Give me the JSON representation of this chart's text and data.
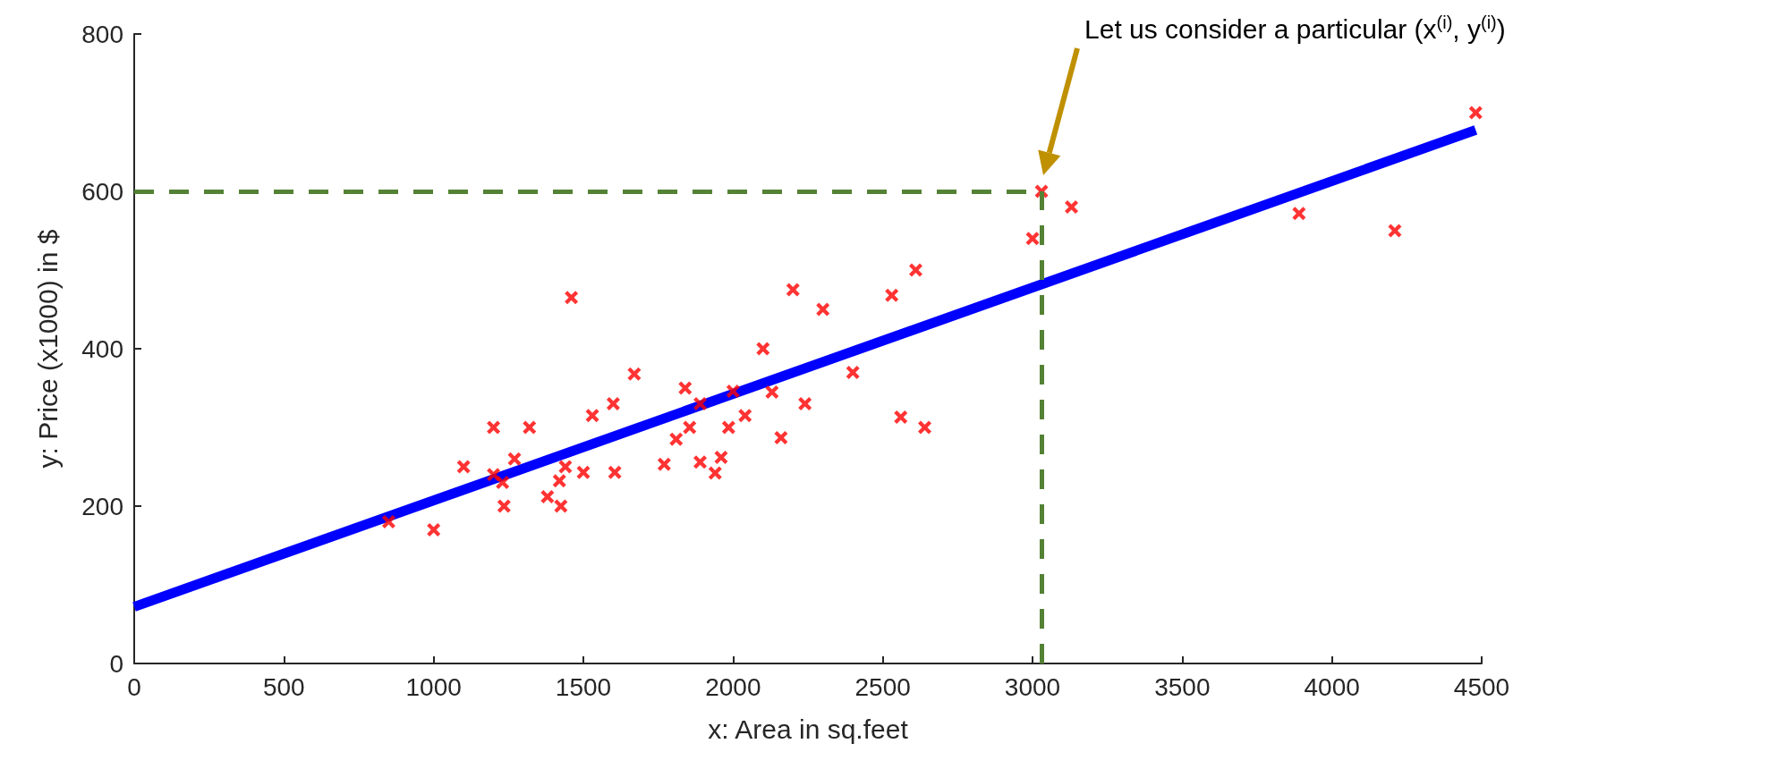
{
  "chart_data": {
    "type": "scatter",
    "xlabel": "x: Area in sq.feet",
    "ylabel": "y: Price (x1000) in $",
    "xlim": [
      0,
      4500
    ],
    "ylim": [
      0,
      800
    ],
    "xticks": [
      0,
      500,
      1000,
      1500,
      2000,
      2500,
      3000,
      3500,
      4000,
      4500
    ],
    "yticks": [
      0,
      200,
      400,
      600,
      800
    ],
    "grid": false,
    "marker": "cross",
    "series": [
      {
        "color": "#ff0000",
        "x": [
          850,
          1000,
          1100,
          1200,
          1200,
          1230,
          1235,
          1270,
          1320,
          1380,
          1420,
          1425,
          1440,
          1460,
          1500,
          1530,
          1600,
          1605,
          1670,
          1770,
          1810,
          1840,
          1855,
          1890,
          1890,
          1940,
          1960,
          1985,
          2000,
          2040,
          2100,
          2130,
          2160,
          2200,
          2240,
          2300,
          2400,
          2530,
          2560,
          2610,
          2640,
          3000,
          3030,
          3130,
          3890,
          4210,
          4480
        ],
        "values": [
          180,
          170,
          250,
          300,
          240,
          230,
          200,
          260,
          300,
          212,
          232,
          200,
          250,
          465,
          243,
          315,
          330,
          243,
          368,
          253,
          285,
          350,
          300,
          330,
          256,
          242,
          262,
          300,
          346,
          315,
          400,
          345,
          287,
          475,
          330,
          450,
          370,
          468,
          313,
          500,
          300,
          540,
          600,
          580,
          572,
          550,
          700
        ]
      },
      {
        "type": "line",
        "color": "#0000ff",
        "marker": "none",
        "x": [
          0,
          4480
        ],
        "values": [
          72,
          678
        ]
      }
    ],
    "ref_lines": [
      {
        "axis": "y",
        "value": 600,
        "color": "#548235",
        "line_style": "dashed"
      },
      {
        "axis": "x",
        "value": 3030,
        "color": "#548235",
        "line_style": "dashed"
      }
    ],
    "annotations": [
      "Let us consider a particular (x$^{(i)}$, y$^{(i)}$)"
    ]
  }
}
